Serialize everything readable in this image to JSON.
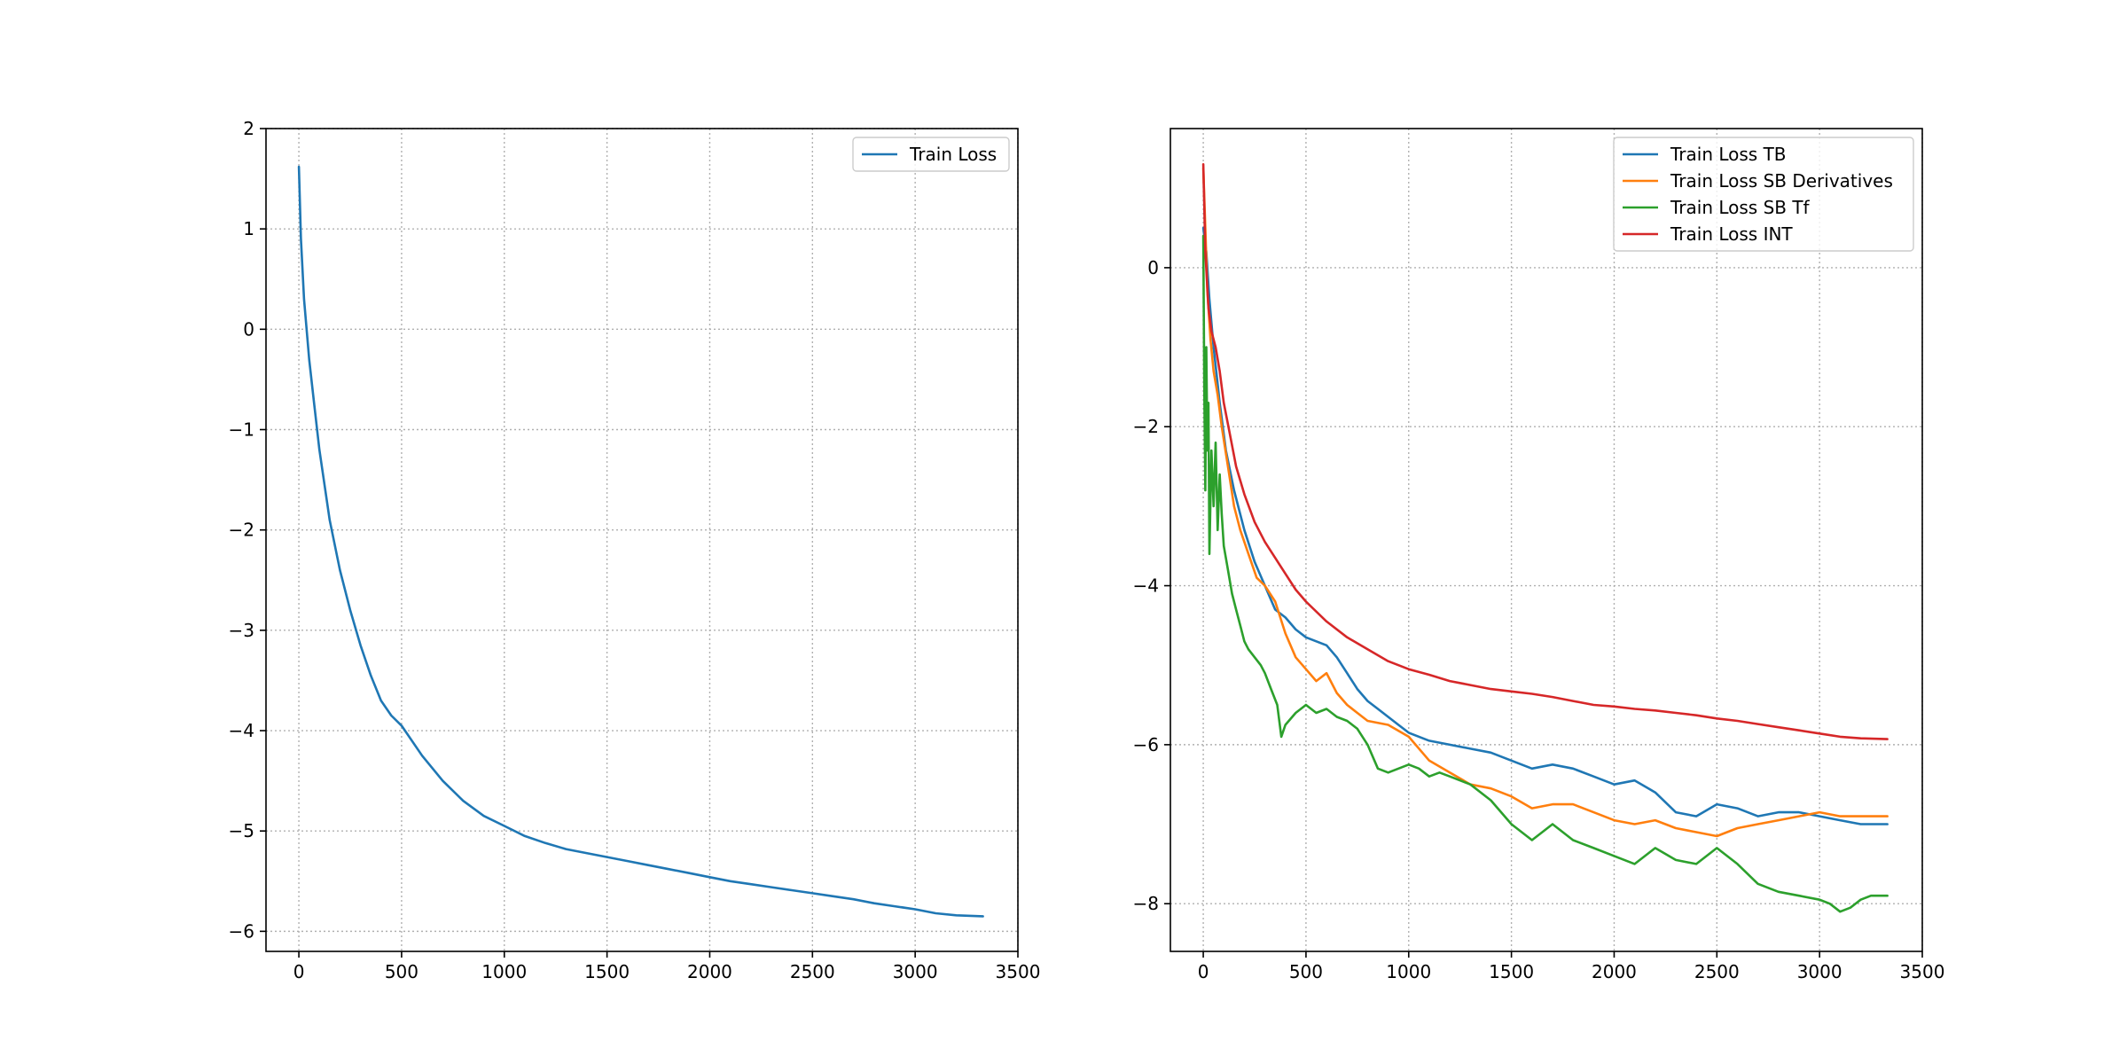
{
  "chart_data": [
    {
      "type": "line",
      "title": "",
      "xlabel": "",
      "ylabel": "",
      "xlim": [
        -160,
        3500
      ],
      "ylim": [
        -6.2,
        2
      ],
      "xticks": [
        0,
        500,
        1000,
        1500,
        2000,
        2500,
        3000,
        3500
      ],
      "yticks": [
        -6,
        -5,
        -4,
        -3,
        -2,
        -1,
        0,
        1,
        2
      ],
      "grid": true,
      "legend_position": "top-right",
      "series": [
        {
          "name": "Train Loss",
          "color": "#1f77b4",
          "x": [
            0,
            10,
            25,
            50,
            75,
            100,
            150,
            200,
            250,
            300,
            350,
            400,
            450,
            500,
            600,
            700,
            800,
            900,
            1000,
            1100,
            1200,
            1300,
            1400,
            1500,
            1600,
            1700,
            1800,
            1900,
            2000,
            2100,
            2200,
            2300,
            2400,
            2500,
            2600,
            2700,
            2800,
            2900,
            3000,
            3100,
            3200,
            3330
          ],
          "y": [
            1.62,
            0.9,
            0.3,
            -0.3,
            -0.75,
            -1.2,
            -1.9,
            -2.4,
            -2.8,
            -3.15,
            -3.45,
            -3.7,
            -3.85,
            -3.95,
            -4.25,
            -4.5,
            -4.7,
            -4.85,
            -4.95,
            -5.05,
            -5.12,
            -5.18,
            -5.22,
            -5.26,
            -5.3,
            -5.34,
            -5.38,
            -5.42,
            -5.46,
            -5.5,
            -5.53,
            -5.56,
            -5.59,
            -5.62,
            -5.65,
            -5.68,
            -5.72,
            -5.75,
            -5.78,
            -5.82,
            -5.84,
            -5.85
          ]
        }
      ]
    },
    {
      "type": "line",
      "title": "",
      "xlabel": "",
      "ylabel": "",
      "xlim": [
        -160,
        3500
      ],
      "ylim": [
        -8.6,
        1.75
      ],
      "xticks": [
        0,
        500,
        1000,
        1500,
        2000,
        2500,
        3000,
        3500
      ],
      "yticks": [
        -8,
        -6,
        -4,
        -2,
        0
      ],
      "grid": true,
      "legend_position": "top-right",
      "series": [
        {
          "name": "Train Loss TB",
          "color": "#1f77b4",
          "x": [
            0,
            15,
            30,
            50,
            80,
            110,
            150,
            200,
            250,
            300,
            350,
            400,
            450,
            500,
            550,
            600,
            650,
            700,
            750,
            800,
            850,
            900,
            950,
            1000,
            1100,
            1200,
            1300,
            1400,
            1500,
            1600,
            1700,
            1800,
            1900,
            2000,
            2100,
            2200,
            2300,
            2400,
            2500,
            2600,
            2700,
            2800,
            2900,
            3000,
            3100,
            3200,
            3330
          ],
          "y": [
            0.5,
            0.2,
            -0.4,
            -1.0,
            -1.7,
            -2.3,
            -2.8,
            -3.3,
            -3.7,
            -4.0,
            -4.3,
            -4.4,
            -4.55,
            -4.65,
            -4.7,
            -4.75,
            -4.9,
            -5.1,
            -5.3,
            -5.45,
            -5.55,
            -5.65,
            -5.75,
            -5.85,
            -5.95,
            -6.0,
            -6.05,
            -6.1,
            -6.2,
            -6.3,
            -6.25,
            -6.3,
            -6.4,
            -6.5,
            -6.45,
            -6.6,
            -6.85,
            -6.9,
            -6.75,
            -6.8,
            -6.9,
            -6.85,
            -6.85,
            -6.9,
            -6.95,
            -7.0,
            -7.0
          ]
        },
        {
          "name": "Train Loss SB Derivatives",
          "color": "#ff7f0e",
          "x": [
            0,
            10,
            20,
            35,
            50,
            70,
            90,
            120,
            150,
            180,
            220,
            260,
            300,
            350,
            400,
            450,
            500,
            550,
            600,
            650,
            700,
            750,
            800,
            900,
            1000,
            1100,
            1200,
            1300,
            1400,
            1500,
            1600,
            1700,
            1800,
            1900,
            2000,
            2100,
            2200,
            2300,
            2400,
            2500,
            2600,
            2700,
            2800,
            2900,
            3000,
            3100,
            3200,
            3330
          ],
          "y": [
            1.25,
            0.5,
            -0.3,
            -0.9,
            -1.3,
            -1.6,
            -2.0,
            -2.5,
            -3.0,
            -3.3,
            -3.6,
            -3.9,
            -4.0,
            -4.2,
            -4.6,
            -4.9,
            -5.05,
            -5.2,
            -5.1,
            -5.35,
            -5.5,
            -5.6,
            -5.7,
            -5.75,
            -5.9,
            -6.2,
            -6.35,
            -6.5,
            -6.55,
            -6.65,
            -6.8,
            -6.75,
            -6.75,
            -6.85,
            -6.95,
            -7.0,
            -6.95,
            -7.05,
            -7.1,
            -7.15,
            -7.05,
            -7.0,
            -6.95,
            -6.9,
            -6.85,
            -6.9,
            -6.9,
            -6.9
          ]
        },
        {
          "name": "Train Loss SB Tf",
          "color": "#2ca02c",
          "x": [
            0,
            5,
            10,
            15,
            20,
            25,
            30,
            40,
            50,
            60,
            70,
            80,
            90,
            100,
            120,
            140,
            160,
            180,
            200,
            220,
            250,
            280,
            300,
            330,
            360,
            380,
            400,
            450,
            500,
            550,
            600,
            650,
            700,
            750,
            800,
            850,
            900,
            950,
            1000,
            1050,
            1100,
            1150,
            1200,
            1300,
            1400,
            1500,
            1600,
            1700,
            1800,
            1900,
            2000,
            2100,
            2200,
            2300,
            2400,
            2500,
            2600,
            2700,
            2800,
            2900,
            3000,
            3050,
            3100,
            3150,
            3200,
            3250,
            3330
          ],
          "y": [
            0.4,
            -1.5,
            -2.8,
            -1.0,
            -2.3,
            -1.7,
            -3.6,
            -2.3,
            -3.0,
            -2.2,
            -3.3,
            -2.6,
            -3.1,
            -3.5,
            -3.8,
            -4.1,
            -4.3,
            -4.5,
            -4.7,
            -4.8,
            -4.9,
            -5.0,
            -5.1,
            -5.3,
            -5.5,
            -5.9,
            -5.75,
            -5.6,
            -5.5,
            -5.6,
            -5.55,
            -5.65,
            -5.7,
            -5.8,
            -6.0,
            -6.3,
            -6.35,
            -6.3,
            -6.25,
            -6.3,
            -6.4,
            -6.35,
            -6.4,
            -6.5,
            -6.7,
            -7.0,
            -7.2,
            -7.0,
            -7.2,
            -7.3,
            -7.4,
            -7.5,
            -7.3,
            -7.45,
            -7.5,
            -7.3,
            -7.5,
            -7.75,
            -7.85,
            -7.9,
            -7.95,
            -8.0,
            -8.1,
            -8.05,
            -7.95,
            -7.9,
            -7.9
          ]
        },
        {
          "name": "Train Loss INT",
          "color": "#d62728",
          "x": [
            0,
            10,
            25,
            40,
            60,
            80,
            100,
            130,
            160,
            200,
            250,
            300,
            350,
            400,
            450,
            500,
            600,
            700,
            800,
            900,
            1000,
            1100,
            1200,
            1300,
            1400,
            1500,
            1600,
            1700,
            1800,
            1900,
            2000,
            2100,
            2200,
            2300,
            2400,
            2500,
            2600,
            2700,
            2800,
            2900,
            3000,
            3100,
            3200,
            3330
          ],
          "y": [
            1.3,
            0.2,
            -0.5,
            -0.8,
            -1.0,
            -1.3,
            -1.7,
            -2.1,
            -2.5,
            -2.85,
            -3.2,
            -3.45,
            -3.65,
            -3.85,
            -4.05,
            -4.2,
            -4.45,
            -4.65,
            -4.8,
            -4.95,
            -5.05,
            -5.12,
            -5.2,
            -5.25,
            -5.3,
            -5.33,
            -5.36,
            -5.4,
            -5.45,
            -5.5,
            -5.52,
            -5.55,
            -5.57,
            -5.6,
            -5.63,
            -5.67,
            -5.7,
            -5.74,
            -5.78,
            -5.82,
            -5.86,
            -5.9,
            -5.92,
            -5.93
          ]
        }
      ]
    }
  ]
}
